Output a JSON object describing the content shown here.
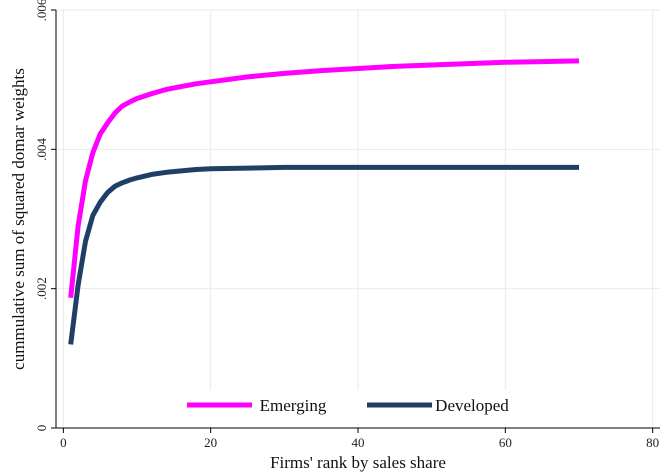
{
  "chart_data": {
    "type": "line",
    "xlabel": "Firms' rank by sales share",
    "ylabel": "cummulative sum of squared domar weights",
    "xlim": [
      -1,
      81
    ],
    "ylim": [
      0,
      0.006
    ],
    "x_ticks": [
      {
        "value": 0,
        "label": "0"
      },
      {
        "value": 20,
        "label": "20"
      },
      {
        "value": 40,
        "label": "40"
      },
      {
        "value": 60,
        "label": "60"
      },
      {
        "value": 80,
        "label": "80"
      }
    ],
    "y_ticks": [
      {
        "value": 0,
        "label": "0"
      },
      {
        "value": 0.002,
        "label": ".002"
      },
      {
        "value": 0.004,
        "label": ".004"
      },
      {
        "value": 0.006,
        "label": ".006"
      }
    ],
    "grid": true,
    "legend_position": "bottom-center",
    "series": [
      {
        "name": "Emerging",
        "color": "#ff00ff",
        "x": [
          1,
          2,
          3,
          4,
          5,
          6,
          7,
          8,
          9,
          10,
          12,
          14,
          16,
          18,
          20,
          25,
          30,
          35,
          40,
          45,
          50,
          55,
          60,
          65,
          70
        ],
        "y": [
          0.00187,
          0.0029,
          0.00355,
          0.00395,
          0.00422,
          0.00438,
          0.00452,
          0.00462,
          0.00468,
          0.00473,
          0.0048,
          0.00486,
          0.0049,
          0.00494,
          0.00497,
          0.00504,
          0.00509,
          0.00513,
          0.00516,
          0.00519,
          0.00521,
          0.00523,
          0.00525,
          0.00526,
          0.00527
        ]
      },
      {
        "name": "Developed",
        "color": "#1f3f66",
        "x": [
          1,
          2,
          3,
          4,
          5,
          6,
          7,
          8,
          9,
          10,
          12,
          14,
          16,
          18,
          20,
          25,
          30,
          40,
          50,
          60,
          70
        ],
        "y": [
          0.0012,
          0.00205,
          0.00268,
          0.00305,
          0.00324,
          0.00338,
          0.00347,
          0.00352,
          0.00356,
          0.00359,
          0.00364,
          0.00367,
          0.00369,
          0.00371,
          0.00372,
          0.00373,
          0.00374,
          0.00374,
          0.00374,
          0.00374,
          0.00374
        ]
      }
    ]
  }
}
